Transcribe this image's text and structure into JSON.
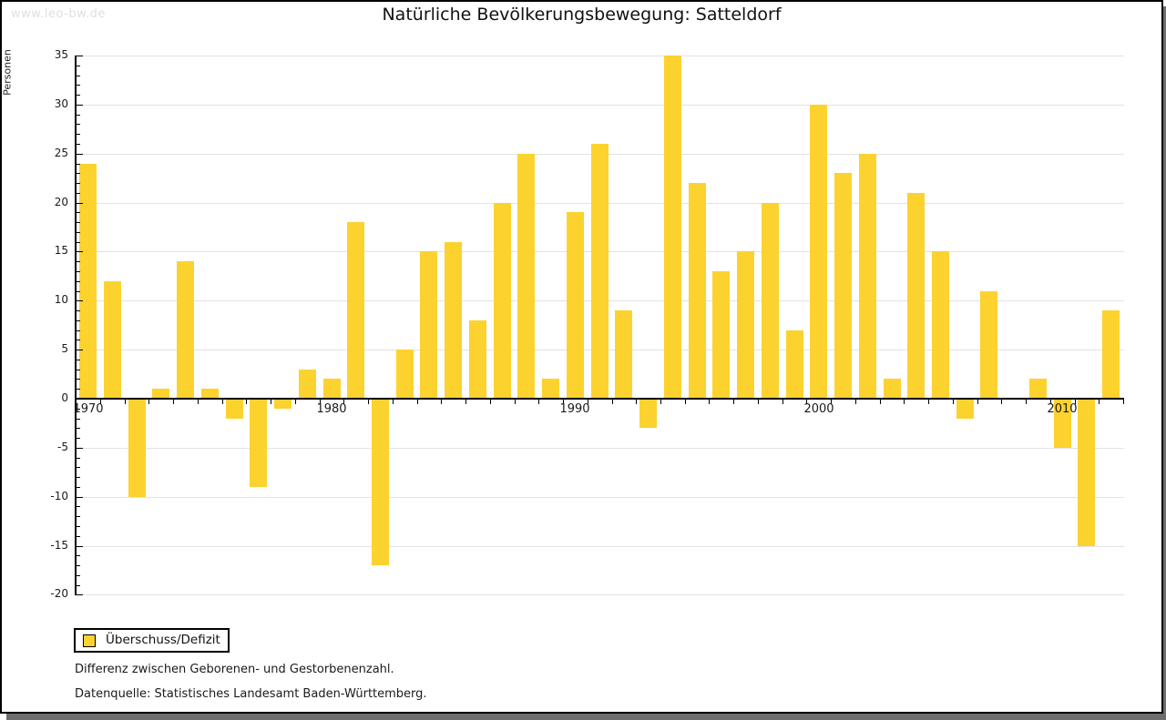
{
  "watermark": "www.leo-bw.de",
  "title": "Natürliche Bevölkerungsbewegung: Satteldorf",
  "legend": {
    "label": "Überschuss/Defizit"
  },
  "footnotes": [
    "Differenz zwischen Geborenen- und Gestorbenenzahl.",
    "Datenquelle: Statistisches Landesamt Baden-Württemberg."
  ],
  "colors": {
    "bar": "#fcd22f",
    "grid": "#e3e3e3",
    "axis": "#000000",
    "watermark": "#e0e0e0",
    "frame_shadow": "#6e6e6e"
  },
  "chart_data": {
    "type": "bar",
    "title": "Natürliche Bevölkerungsbewegung: Satteldorf",
    "xlabel": "",
    "ylabel": "Personen",
    "series_name": "Überschuss/Defizit",
    "ylim": [
      -20,
      35
    ],
    "ytick_major_step": 5,
    "ytick_minor_step": 1,
    "y_tick_labels": [
      35,
      30,
      25,
      20,
      15,
      10,
      5,
      0,
      -5,
      -10,
      -15,
      -20
    ],
    "x_tick_labels": [
      1970,
      1980,
      1990,
      2000,
      2010
    ],
    "grid": true,
    "legend_position": "bottom-left",
    "years": [
      1970,
      1971,
      1972,
      1973,
      1974,
      1975,
      1976,
      1977,
      1978,
      1979,
      1980,
      1981,
      1982,
      1983,
      1984,
      1985,
      1986,
      1987,
      1988,
      1989,
      1990,
      1991,
      1992,
      1993,
      1994,
      1995,
      1996,
      1997,
      1998,
      1999,
      2000,
      2001,
      2002,
      2003,
      2004,
      2005,
      2006,
      2007,
      2008,
      2009,
      2010,
      2011,
      2012
    ],
    "values": [
      24,
      12,
      -10,
      1,
      14,
      1,
      -2,
      -9,
      -1,
      3,
      2,
      18,
      -17,
      5,
      15,
      16,
      8,
      20,
      25,
      2,
      19,
      26,
      9,
      -3,
      35,
      22,
      13,
      15,
      20,
      7,
      30,
      23,
      25,
      2,
      21,
      15,
      -2,
      11,
      0,
      2,
      -5,
      -15,
      9
    ]
  }
}
